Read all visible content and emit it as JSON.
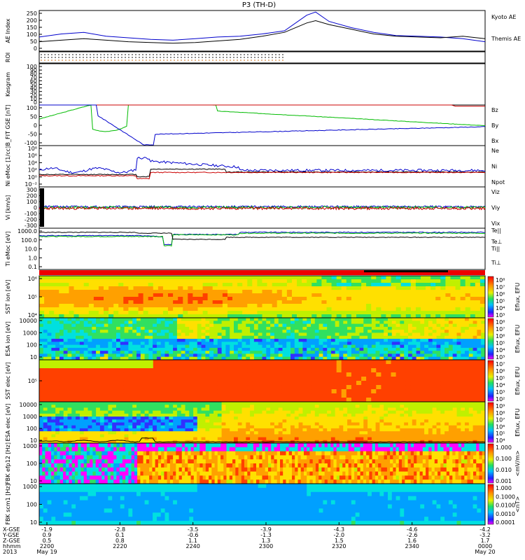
{
  "title": "P3 (TH-D)",
  "colors": {
    "kyoto": "#0000cc",
    "themis": "#000000",
    "red": "#cc0000",
    "green": "#00bb00",
    "blue": "#0000cc"
  },
  "chart_data": [
    {
      "type": "line",
      "panel": "ae",
      "ylabel": "AE Index",
      "ticks": [
        "250",
        "200",
        "150",
        "100",
        "50",
        "0"
      ],
      "ylim": [
        0,
        260
      ],
      "x": [
        0,
        0.05,
        0.1,
        0.15,
        0.2,
        0.25,
        0.3,
        0.35,
        0.4,
        0.45,
        0.5,
        0.55,
        0.6,
        0.62,
        0.65,
        0.7,
        0.75,
        0.8,
        0.85,
        0.9,
        0.95,
        1.0
      ],
      "series": [
        {
          "name": "Kyoto AE",
          "color": "kyoto",
          "values": [
            90,
            110,
            120,
            95,
            85,
            75,
            70,
            80,
            90,
            95,
            110,
            130,
            230,
            250,
            190,
            150,
            120,
            100,
            95,
            90,
            80,
            60
          ]
        },
        {
          "name": "Themis AE",
          "color": "themis",
          "values": [
            60,
            70,
            80,
            70,
            60,
            55,
            50,
            55,
            65,
            75,
            95,
            120,
            180,
            195,
            170,
            140,
            110,
            95,
            90,
            85,
            95,
            80
          ]
        }
      ]
    },
    {
      "type": "scatter",
      "panel": "roi",
      "ylabel": "ROI"
    },
    {
      "type": "table",
      "panel": "kesgram",
      "ylabel": "Kesgram",
      "ticks": [
        "100",
        "90",
        "80",
        "70",
        "60",
        "50",
        "40",
        "30",
        "20",
        "10",
        "0"
      ]
    },
    {
      "type": "line",
      "panel": "bfield",
      "ylabel": "B_FIT GSE [nT]",
      "ticks": [
        "100",
        "50",
        "0",
        "-50",
        "-100"
      ],
      "ylim": [
        -100,
        100
      ],
      "series": [
        {
          "name": "Bz",
          "color": "red"
        },
        {
          "name": "By",
          "color": "green"
        },
        {
          "name": "Bx",
          "color": "blue"
        }
      ]
    },
    {
      "type": "line",
      "panel": "density",
      "ylabel": "Ni eMoc [1/cc]",
      "ticks": [
        "10⁸",
        "10⁶",
        "10⁴",
        "10²",
        "10⁰",
        "10⁻²"
      ],
      "series": [
        {
          "name": "Ne",
          "color": "red"
        },
        {
          "name": "Ni",
          "color": "themis"
        },
        {
          "name": "Npot",
          "color": "blue"
        }
      ]
    },
    {
      "type": "line",
      "panel": "velocity",
      "ylabel": "Vi [km/s]",
      "ticks": [
        "300",
        "200",
        "100",
        "0",
        "-100",
        "-200",
        "-300"
      ],
      "series": [
        {
          "name": "Viz",
          "color": "red"
        },
        {
          "name": "Viy",
          "color": "green"
        },
        {
          "name": "Vix",
          "color": "blue"
        }
      ]
    },
    {
      "type": "line",
      "panel": "temp",
      "ylabel": "Ti eMoc [eV]",
      "ticks": [
        "1000.0",
        "100.0",
        "10.0",
        "1.0",
        "0.1"
      ],
      "series": [
        {
          "name": "Te||",
          "color": "themis"
        },
        {
          "name": "Te⊥",
          "color": "red"
        },
        {
          "name": "Ti||",
          "color": "green"
        },
        {
          "name": "Ti⊥",
          "color": "blue"
        }
      ]
    },
    {
      "type": "heatmap",
      "panel": "sst_i",
      "ylabel": "SST ion [eV]",
      "ticks": [
        "10⁶",
        "10⁵",
        "10⁴"
      ],
      "colorbar": {
        "label": "Eflux, EFU",
        "ticks": [
          "10⁸",
          "10⁷",
          "10⁶",
          "10⁵",
          "10⁴",
          "10³"
        ]
      }
    },
    {
      "type": "heatmap",
      "panel": "esa_i",
      "ylabel": "ESA ion [eV]",
      "ticks": [
        "10000",
        "1000",
        "100",
        "10"
      ],
      "colorbar": {
        "label": "Eflux, EFU",
        "ticks": [
          "10⁸",
          "10⁷",
          "10⁶",
          "10⁵",
          "10⁴",
          "10³"
        ]
      }
    },
    {
      "type": "heatmap",
      "panel": "sst_e",
      "ylabel": "SST elec [eV]",
      "ticks": [
        "10⁵"
      ],
      "colorbar": {
        "label": "Eflux, EFU",
        "ticks": [
          "10⁷",
          "10⁶",
          "10⁵",
          "10⁴",
          "10³",
          "10²"
        ]
      }
    },
    {
      "type": "heatmap",
      "panel": "esa_e",
      "ylabel": "ESA elec [eV]",
      "ticks": [
        "10000",
        "1000",
        "100",
        "10"
      ],
      "colorbar": {
        "label": "Eflux, EFU",
        "ticks": [
          "10⁹",
          "10⁸",
          "10⁷",
          "10⁶",
          "10⁵",
          "10⁴"
        ]
      }
    },
    {
      "type": "heatmap",
      "panel": "fbk_e",
      "ylabel": "FBK efp12 [Hz]",
      "ticks": [
        "1000",
        "100",
        "10"
      ],
      "colorbar": {
        "label": "<mV/m>",
        "ticks": [
          "1.000",
          "0.100",
          "0.010",
          "0.001"
        ]
      }
    },
    {
      "type": "heatmap",
      "panel": "fbk_b",
      "ylabel": "FBK scm1 [Hz]",
      "ticks": [
        "1000",
        "100",
        "10"
      ],
      "colorbar": {
        "label": "<nT>",
        "ticks": [
          "1.000",
          "0.1000",
          "0.0100",
          "0.0010",
          "0.0001"
        ]
      }
    }
  ],
  "xaxis": {
    "rows": [
      {
        "label": "X-GSE",
        "values": [
          "-1.9",
          "-2.8",
          "-3.5",
          "-3.9",
          "-4.3",
          "-4.6",
          "-4.2"
        ]
      },
      {
        "label": "Y-GSE",
        "values": [
          "0.9",
          "0.1",
          "-0.6",
          "-1.3",
          "-2.0",
          "-2.6",
          "-3.2"
        ]
      },
      {
        "label": "Z-GSE",
        "values": [
          "0.5",
          "0.8",
          "1.1",
          "1.3",
          "1.5",
          "1.6",
          "1.7"
        ]
      },
      {
        "label": "hhmm",
        "values": [
          "2200",
          "2220",
          "2240",
          "2300",
          "2320",
          "2340",
          "0000"
        ]
      }
    ],
    "dates": {
      "year": "2013",
      "start": "May 19",
      "end": "May 20"
    }
  }
}
